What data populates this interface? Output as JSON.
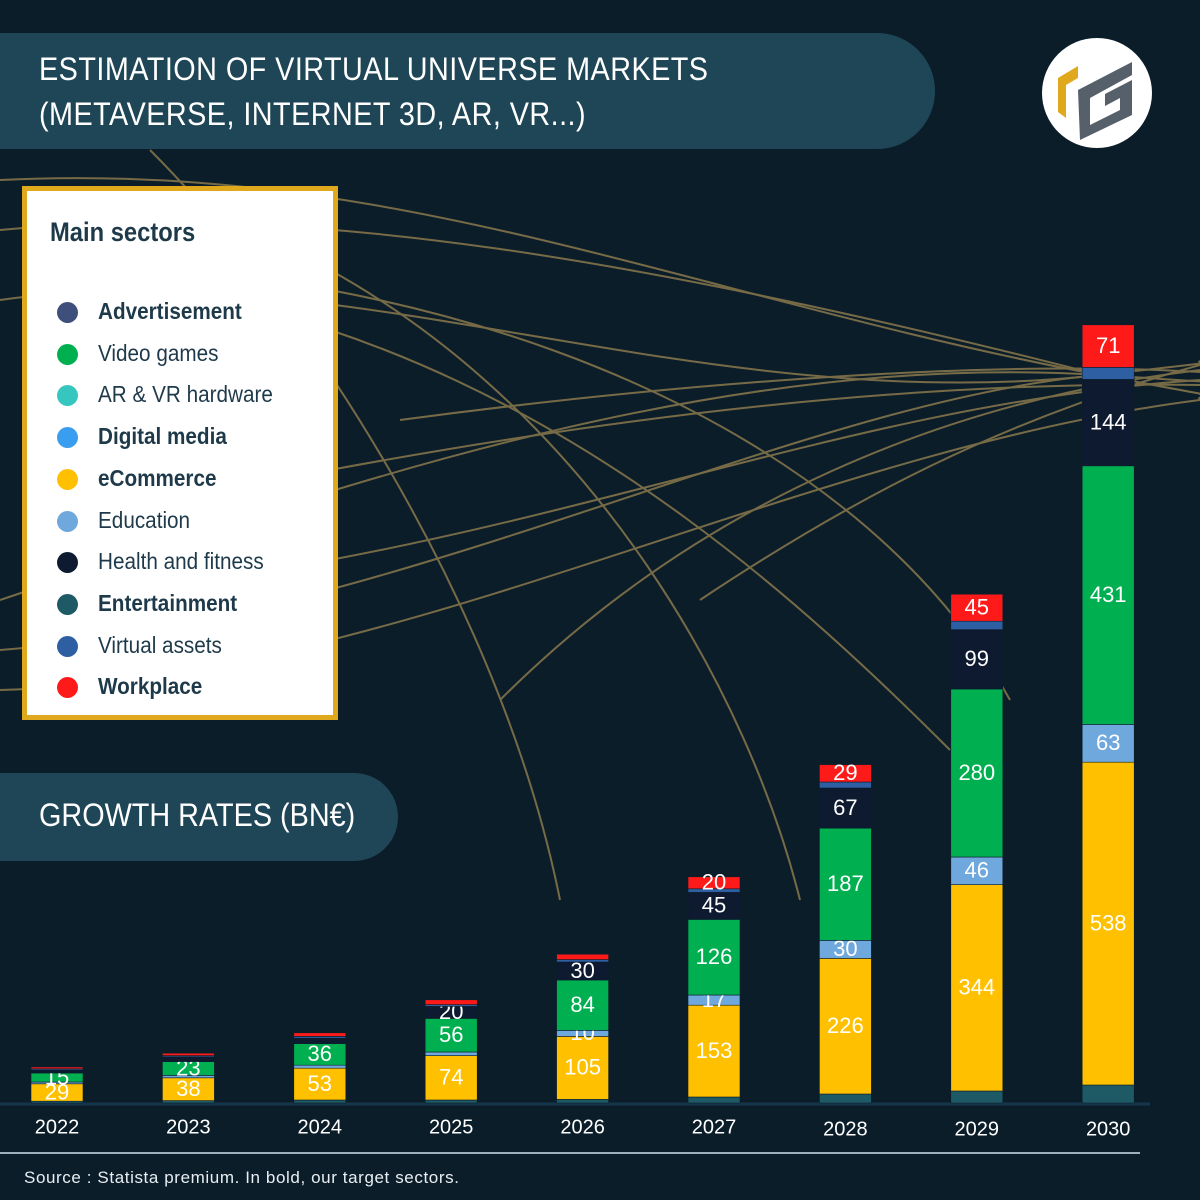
{
  "chart_data": {
    "type": "stacked-bar",
    "title": "ESTIMATION OF VIRTUAL UNIVERSE MARKETS (METAVERSE, INTERNET 3D, AR, VR...)",
    "subtitle": "GROWTH RATES (BN€)",
    "legend_title": "Main sectors",
    "source": "Source : Statista premium. In bold, our target sectors.",
    "categories": [
      "2022",
      "2023",
      "2024",
      "2025",
      "2026",
      "2027",
      "2028",
      "2029",
      "2030"
    ],
    "series": [
      {
        "name": "Advertisement",
        "color": "#3d4f7a",
        "bold": true,
        "labels": false,
        "values": [
          null,
          null,
          null,
          null,
          null,
          null,
          null,
          null,
          null
        ]
      },
      {
        "name": "Video games",
        "color": "#00b050",
        "bold": false,
        "labels": true,
        "values": [
          15,
          23,
          36,
          56,
          84,
          126,
          187,
          280,
          431
        ]
      },
      {
        "name": "AR & VR hardware",
        "color": "#35c6c0",
        "bold": false,
        "labels": false,
        "values": [
          null,
          null,
          null,
          null,
          null,
          null,
          null,
          null,
          null
        ]
      },
      {
        "name": "Digital media",
        "color": "#3a9ef0",
        "bold": true,
        "labels": false,
        "values": [
          null,
          null,
          null,
          null,
          null,
          null,
          null,
          null,
          null
        ]
      },
      {
        "name": "eCommerce",
        "color": "#ffc000",
        "bold": true,
        "labels": true,
        "values": [
          29,
          38,
          53,
          74,
          105,
          153,
          226,
          344,
          538
        ]
      },
      {
        "name": " Education",
        "color": "#6fa8dc",
        "bold": false,
        "labels": true,
        "values": [
          3,
          4,
          5,
          6,
          10,
          17,
          30,
          46,
          63
        ]
      },
      {
        "name": "Health and fitness",
        "color": "#0d1a30",
        "bold": false,
        "labels": true,
        "values": [
          5,
          8,
          9,
          20,
          30,
          45,
          67,
          99,
          144
        ]
      },
      {
        "name": "Entertainment",
        "color": "#1d5a66",
        "bold": true,
        "labels": false,
        "values": [
          3,
          4,
          5,
          5,
          6,
          10,
          15,
          20,
          30
        ]
      },
      {
        "name": "Virtual assets",
        "color": "#2e5fa3",
        "bold": false,
        "labels": false,
        "values": [
          2,
          2,
          3,
          3,
          4,
          6,
          10,
          14,
          20
        ]
      },
      {
        "name": "Workplace",
        "color": "#ff1a1a",
        "bold": true,
        "labels": true,
        "values": [
          3,
          4,
          6,
          8,
          9,
          20,
          29,
          45,
          71
        ]
      }
    ],
    "stack_order": [
      7,
      4,
      5,
      1,
      6,
      8,
      9
    ]
  }
}
